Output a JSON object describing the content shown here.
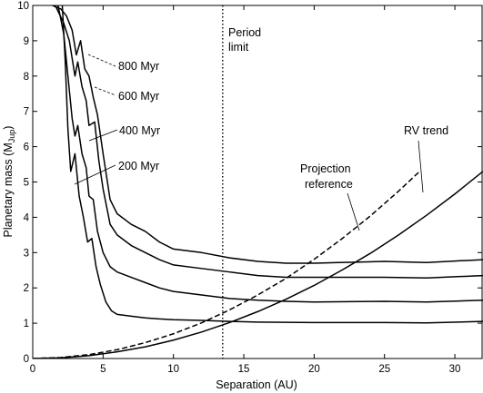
{
  "chart_data": {
    "type": "line",
    "xlabel": "Separation (AU)",
    "ylabel_main": "Planetary mass (M",
    "ylabel_sub": "Jup",
    "ylabel_close": ")",
    "xlim": [
      0,
      32
    ],
    "ylim": [
      0,
      10
    ],
    "xticks": [
      0,
      5,
      10,
      15,
      20,
      25,
      30
    ],
    "yticks": [
      0,
      1,
      2,
      3,
      4,
      5,
      6,
      7,
      8,
      9,
      10
    ],
    "grid": false,
    "series": [
      {
        "name": "800 Myr",
        "style": "solid",
        "points": [
          [
            1.4,
            10
          ],
          [
            2.0,
            9.9
          ],
          [
            2.4,
            9.7
          ],
          [
            2.8,
            9.3
          ],
          [
            3.1,
            8.6
          ],
          [
            3.4,
            9.0
          ],
          [
            3.7,
            8.2
          ],
          [
            4.0,
            8.0
          ],
          [
            4.3,
            7.4
          ],
          [
            4.6,
            6.9
          ],
          [
            5.0,
            5.8
          ],
          [
            5.5,
            4.5
          ],
          [
            6.0,
            4.1
          ],
          [
            7.0,
            3.8
          ],
          [
            8.0,
            3.6
          ],
          [
            9.0,
            3.3
          ],
          [
            10.0,
            3.1
          ],
          [
            12.0,
            3.0
          ],
          [
            14.0,
            2.85
          ],
          [
            16.0,
            2.75
          ],
          [
            18.0,
            2.7
          ],
          [
            20.0,
            2.7
          ],
          [
            25.0,
            2.75
          ],
          [
            28.0,
            2.72
          ],
          [
            32.0,
            2.8
          ]
        ]
      },
      {
        "name": "600 Myr",
        "style": "solid",
        "points": [
          [
            1.6,
            10
          ],
          [
            2.2,
            9.5
          ],
          [
            2.6,
            9.0
          ],
          [
            3.0,
            8.0
          ],
          [
            3.2,
            8.4
          ],
          [
            3.5,
            7.7
          ],
          [
            3.8,
            7.3
          ],
          [
            4.0,
            6.6
          ],
          [
            4.4,
            6.7
          ],
          [
            4.7,
            5.6
          ],
          [
            5.0,
            4.8
          ],
          [
            5.5,
            3.8
          ],
          [
            6.0,
            3.5
          ],
          [
            7.0,
            3.2
          ],
          [
            8.0,
            3.0
          ],
          [
            9.0,
            2.8
          ],
          [
            10.0,
            2.65
          ],
          [
            12.0,
            2.55
          ],
          [
            14.0,
            2.45
          ],
          [
            16.0,
            2.35
          ],
          [
            18.0,
            2.3
          ],
          [
            20.0,
            2.3
          ],
          [
            25.0,
            2.3
          ],
          [
            28.0,
            2.28
          ],
          [
            32.0,
            2.35
          ]
        ]
      },
      {
        "name": "400 Myr",
        "style": "solid",
        "points": [
          [
            1.8,
            10
          ],
          [
            2.2,
            9.2
          ],
          [
            2.5,
            8.0
          ],
          [
            2.8,
            6.8
          ],
          [
            3.0,
            6.3
          ],
          [
            3.2,
            6.6
          ],
          [
            3.5,
            5.8
          ],
          [
            3.8,
            5.4
          ],
          [
            4.0,
            4.6
          ],
          [
            4.3,
            4.5
          ],
          [
            4.6,
            3.6
          ],
          [
            5.0,
            3.0
          ],
          [
            5.5,
            2.6
          ],
          [
            6.0,
            2.45
          ],
          [
            7.0,
            2.3
          ],
          [
            8.0,
            2.15
          ],
          [
            9.0,
            2.0
          ],
          [
            10.0,
            1.9
          ],
          [
            12.0,
            1.8
          ],
          [
            14.0,
            1.7
          ],
          [
            16.0,
            1.65
          ],
          [
            18.0,
            1.62
          ],
          [
            20.0,
            1.6
          ],
          [
            25.0,
            1.62
          ],
          [
            28.0,
            1.6
          ],
          [
            32.0,
            1.65
          ]
        ]
      },
      {
        "name": "200 Myr",
        "style": "solid",
        "points": [
          [
            2.1,
            10
          ],
          [
            2.3,
            8.5
          ],
          [
            2.5,
            6.5
          ],
          [
            2.7,
            5.3
          ],
          [
            3.0,
            5.8
          ],
          [
            3.3,
            4.6
          ],
          [
            3.6,
            4.0
          ],
          [
            3.9,
            3.3
          ],
          [
            4.2,
            3.4
          ],
          [
            4.5,
            2.6
          ],
          [
            4.8,
            2.1
          ],
          [
            5.2,
            1.6
          ],
          [
            5.6,
            1.35
          ],
          [
            6.0,
            1.25
          ],
          [
            7.0,
            1.2
          ],
          [
            8.0,
            1.15
          ],
          [
            9.0,
            1.12
          ],
          [
            10.0,
            1.1
          ],
          [
            12.0,
            1.08
          ],
          [
            14.0,
            1.05
          ],
          [
            16.0,
            1.03
          ],
          [
            20.0,
            1.02
          ],
          [
            25.0,
            1.02
          ],
          [
            28.0,
            1.01
          ],
          [
            32.0,
            1.05
          ]
        ]
      },
      {
        "name": "RV trend",
        "style": "solid",
        "points": [
          [
            0,
            0
          ],
          [
            2,
            0.02
          ],
          [
            4,
            0.08
          ],
          [
            6,
            0.19
          ],
          [
            8,
            0.33
          ],
          [
            10,
            0.52
          ],
          [
            12,
            0.75
          ],
          [
            14,
            1.02
          ],
          [
            16,
            1.33
          ],
          [
            18,
            1.68
          ],
          [
            20,
            2.07
          ],
          [
            22,
            2.51
          ],
          [
            24,
            2.98
          ],
          [
            26,
            3.5
          ],
          [
            28,
            4.06
          ],
          [
            30,
            4.66
          ],
          [
            32,
            5.3
          ]
        ]
      },
      {
        "name": "Projection reference",
        "style": "dashed",
        "points": [
          [
            0,
            0
          ],
          [
            2,
            0.03
          ],
          [
            4,
            0.11
          ],
          [
            6,
            0.25
          ],
          [
            8,
            0.45
          ],
          [
            10,
            0.7
          ],
          [
            12,
            1.01
          ],
          [
            14,
            1.38
          ],
          [
            16,
            1.8
          ],
          [
            18,
            2.27
          ],
          [
            20,
            2.81
          ],
          [
            22,
            3.4
          ],
          [
            24,
            4.04
          ],
          [
            26,
            4.74
          ],
          [
            27.5,
            5.3
          ]
        ]
      }
    ],
    "vline": {
      "x": 13.5,
      "style": "dotted",
      "label_line1": "Period",
      "label_line2": "limit"
    },
    "annotations": [
      {
        "text": "800 Myr"
      },
      {
        "text": "600 Myr"
      },
      {
        "text": "400 Myr"
      },
      {
        "text": "200 Myr"
      },
      {
        "text": "RV trend"
      },
      {
        "text": "Projection"
      },
      {
        "text": "reference"
      }
    ]
  }
}
